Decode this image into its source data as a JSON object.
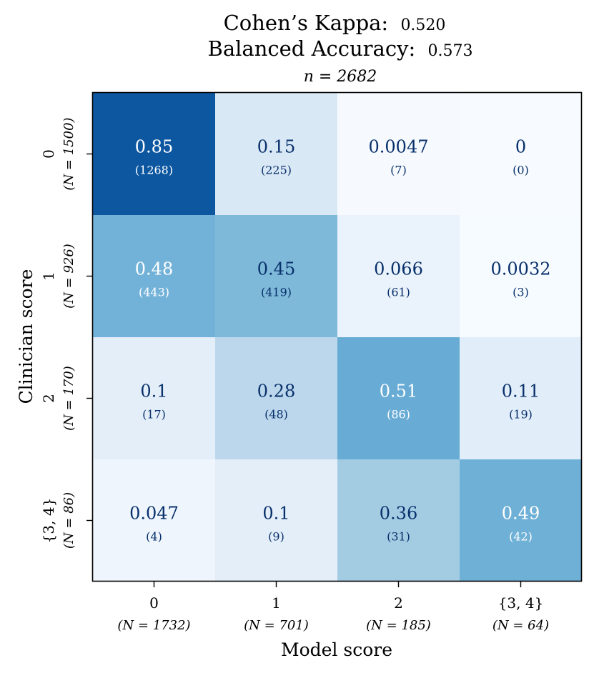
{
  "chart_data": {
    "type": "heatmap",
    "title": {
      "kappa_label": "Cohen’s Kappa:",
      "kappa_value": "0.520",
      "bacc_label": "Balanced Accuracy:",
      "bacc_value": "0.573",
      "n_text": "n = 2682"
    },
    "xlabel": "Model score",
    "ylabel": "Clinician score",
    "x_categories": [
      "0",
      "1",
      "2",
      "{3, 4}"
    ],
    "x_counts": [
      "(N = 1732)",
      "(N = 701)",
      "(N = 185)",
      "(N = 64)"
    ],
    "y_categories": [
      "0",
      "1",
      "2",
      "{3, 4}"
    ],
    "y_counts": [
      "(N = 1500)",
      "(N = 926)",
      "(N = 170)",
      "(N = 86)"
    ],
    "values": [
      [
        0.85,
        0.15,
        0.0047,
        0
      ],
      [
        0.48,
        0.45,
        0.066,
        0.0032
      ],
      [
        0.1,
        0.28,
        0.51,
        0.11
      ],
      [
        0.047,
        0.1,
        0.36,
        0.49
      ]
    ],
    "value_labels": [
      [
        "0.85",
        "0.15",
        "0.0047",
        "0"
      ],
      [
        "0.48",
        "0.45",
        "0.066",
        "0.0032"
      ],
      [
        "0.1",
        "0.28",
        "0.51",
        "0.11"
      ],
      [
        "0.047",
        "0.1",
        "0.36",
        "0.49"
      ]
    ],
    "count_labels": [
      [
        "(1268)",
        "(225)",
        "(7)",
        "(0)"
      ],
      [
        "(443)",
        "(419)",
        "(61)",
        "(3)"
      ],
      [
        "(17)",
        "(48)",
        "(86)",
        "(19)"
      ],
      [
        "(4)",
        "(9)",
        "(31)",
        "(42)"
      ]
    ],
    "colormap": "Blues",
    "vmin": 0,
    "vmax": 1
  }
}
